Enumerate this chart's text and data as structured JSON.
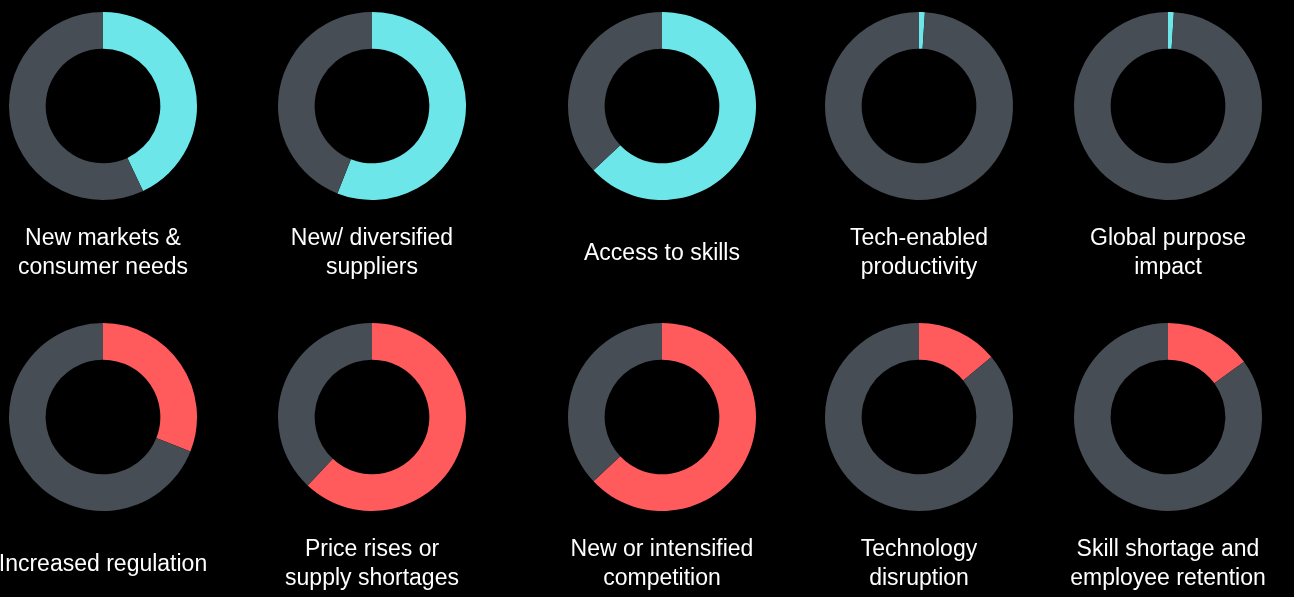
{
  "chart_data": [
    {
      "type": "donut",
      "title": "New markets & consumer needs",
      "categories": [
        null,
        null
      ],
      "values": [
        43,
        57
      ],
      "colors": [
        "#6ce6e8",
        "#474d55"
      ]
    },
    {
      "type": "donut",
      "title": "New/ diversified suppliers",
      "categories": [
        null,
        null
      ],
      "values": [
        56,
        44
      ],
      "colors": [
        "#6ce6e8",
        "#474d55"
      ]
    },
    {
      "type": "donut",
      "title": "Access to skills",
      "categories": [
        null,
        null
      ],
      "values": [
        63,
        37
      ],
      "colors": [
        "#6ce6e8",
        "#474d55"
      ]
    },
    {
      "type": "donut",
      "title": "Tech-enabled productivity",
      "categories": [
        null,
        null
      ],
      "values": [
        1,
        99
      ],
      "colors": [
        "#6ce6e8",
        "#474d55"
      ]
    },
    {
      "type": "donut",
      "title": "Global purpose impact",
      "categories": [
        null,
        null
      ],
      "values": [
        1,
        99
      ],
      "colors": [
        "#6ce6e8",
        "#474d55"
      ]
    },
    {
      "type": "donut",
      "title": "Increased regulation",
      "categories": [
        null,
        null
      ],
      "values": [
        31,
        69
      ],
      "colors": [
        "#ff5a5c",
        "#474d55"
      ]
    },
    {
      "type": "donut",
      "title": "Price rises or supply shortages",
      "categories": [
        null,
        null
      ],
      "values": [
        62,
        38
      ],
      "colors": [
        "#ff5a5c",
        "#474d55"
      ]
    },
    {
      "type": "donut",
      "title": "New or intensified competition",
      "categories": [
        null,
        null
      ],
      "values": [
        63,
        37
      ],
      "colors": [
        "#ff5a5c",
        "#474d55"
      ]
    },
    {
      "type": "donut",
      "title": "Technology disruption",
      "categories": [
        null,
        null
      ],
      "values": [
        14,
        86
      ],
      "colors": [
        "#ff5a5c",
        "#474d55"
      ]
    },
    {
      "type": "donut",
      "title": "Skill shortage and employee retention",
      "categories": [
        null,
        null
      ],
      "values": [
        15,
        85
      ],
      "colors": [
        "#ff5a5c",
        "#474d55"
      ]
    }
  ]
}
